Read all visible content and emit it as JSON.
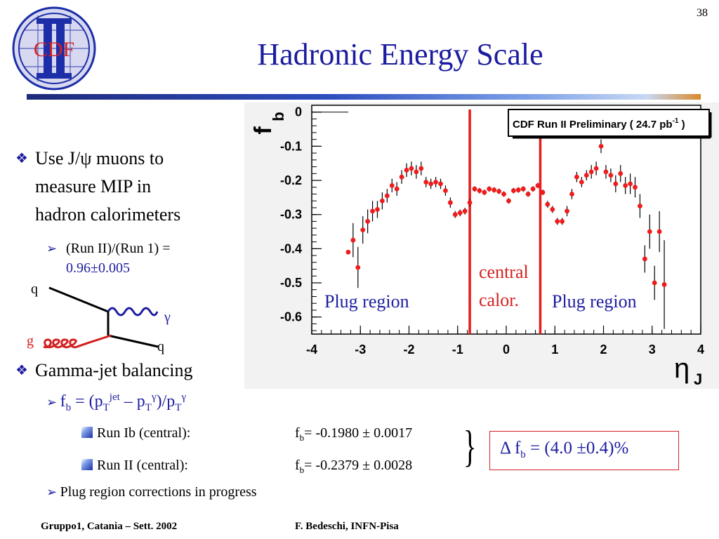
{
  "slide": {
    "number": "38",
    "title": "Hadronic Energy Scale",
    "logo_text": "CDF"
  },
  "bullets": {
    "b1": {
      "line1": "Use J/ψ muons to",
      "line2": "measure MIP in",
      "line3": "hadron calorimeters"
    },
    "b1_sub": {
      "prefix": "(Run II)/(Run 1) =",
      "value": "0.96±0.005"
    },
    "diagram": {
      "q_in": "q",
      "gamma": "γ",
      "g": "g",
      "q_out": "q"
    },
    "b2": "Gamma-jet balancing",
    "formula": {
      "f": "f",
      "b": "b",
      "eq": " = (p",
      "T1": "T",
      "jet": "jet",
      "minus": " – p",
      "T2": "T",
      "g1": "γ",
      "div": ")/p",
      "T3": "T",
      "g2": "γ"
    },
    "run_ib": {
      "label": "Run Ib (central):",
      "f": "f",
      "b": "b",
      "value": "= -0.1980 ± 0.0017"
    },
    "run_ii": {
      "label": "Run II  (central):",
      "f": "f",
      "b": "b",
      "value": "= -0.2379 ± 0.0028"
    },
    "delta": {
      "d": "Δ f",
      "b": "b",
      "value": " = (4.0 ±0.4)%"
    },
    "plug_note": "Plug region corrections in progress"
  },
  "footer": {
    "left": "Gruppo1, Catania – Sett. 2002",
    "right": "F. Bedeschi, INFN-Pisa"
  },
  "chart_data": {
    "type": "scatter",
    "title": "CDF Run II Preliminary ( 24.7 pb",
    "title_sup": "-1",
    "title_end": " )",
    "ylabel": "f",
    "ylabel_sub": "b",
    "xlabel": "η",
    "xlabel_sub": "J",
    "xlim": [
      -4,
      4
    ],
    "ylim": [
      -0.65,
      0.02
    ],
    "xticks": [
      "-4",
      "-3",
      "-2",
      "-1",
      "0",
      "1",
      "2",
      "3",
      "4"
    ],
    "yticks": [
      "0",
      "-0.1",
      "-0.2",
      "-0.3",
      "-0.4",
      "-0.5",
      "-0.6"
    ],
    "series_color": "#ee1c1c",
    "vlines": [
      -0.75,
      0.7
    ],
    "annotations": {
      "plug_left": "Plug region",
      "central_1": "central",
      "central_2": "calor.",
      "plug_right": "Plug region"
    },
    "points": [
      {
        "x": -3.25,
        "y": -0.41,
        "err": 0.0
      },
      {
        "x": -3.15,
        "y": -0.375,
        "err": 0.05
      },
      {
        "x": -3.05,
        "y": -0.455,
        "err": 0.06
      },
      {
        "x": -2.95,
        "y": -0.345,
        "err": 0.04
      },
      {
        "x": -2.85,
        "y": -0.32,
        "err": 0.035
      },
      {
        "x": -2.75,
        "y": -0.29,
        "err": 0.03
      },
      {
        "x": -2.65,
        "y": -0.285,
        "err": 0.025
      },
      {
        "x": -2.55,
        "y": -0.26,
        "err": 0.025
      },
      {
        "x": -2.45,
        "y": -0.245,
        "err": 0.02
      },
      {
        "x": -2.35,
        "y": -0.215,
        "err": 0.02
      },
      {
        "x": -2.25,
        "y": -0.225,
        "err": 0.02
      },
      {
        "x": -2.15,
        "y": -0.19,
        "err": 0.02
      },
      {
        "x": -2.05,
        "y": -0.17,
        "err": 0.02
      },
      {
        "x": -1.95,
        "y": -0.165,
        "err": 0.02
      },
      {
        "x": -1.85,
        "y": -0.175,
        "err": 0.02
      },
      {
        "x": -1.75,
        "y": -0.165,
        "err": 0.02
      },
      {
        "x": -1.65,
        "y": -0.205,
        "err": 0.015
      },
      {
        "x": -1.55,
        "y": -0.21,
        "err": 0.015
      },
      {
        "x": -1.45,
        "y": -0.205,
        "err": 0.015
      },
      {
        "x": -1.35,
        "y": -0.21,
        "err": 0.015
      },
      {
        "x": -1.25,
        "y": -0.23,
        "err": 0.015
      },
      {
        "x": -1.15,
        "y": -0.265,
        "err": 0.015
      },
      {
        "x": -1.05,
        "y": -0.3,
        "err": 0.01
      },
      {
        "x": -0.95,
        "y": -0.295,
        "err": 0.01
      },
      {
        "x": -0.85,
        "y": -0.29,
        "err": 0.01
      },
      {
        "x": -0.75,
        "y": -0.265,
        "err": 0.01
      },
      {
        "x": -0.65,
        "y": -0.225,
        "err": 0.008
      },
      {
        "x": -0.55,
        "y": -0.23,
        "err": 0.008
      },
      {
        "x": -0.45,
        "y": -0.235,
        "err": 0.008
      },
      {
        "x": -0.35,
        "y": -0.225,
        "err": 0.008
      },
      {
        "x": -0.25,
        "y": -0.228,
        "err": 0.008
      },
      {
        "x": -0.15,
        "y": -0.232,
        "err": 0.008
      },
      {
        "x": -0.05,
        "y": -0.24,
        "err": 0.008
      },
      {
        "x": 0.05,
        "y": -0.26,
        "err": 0.008
      },
      {
        "x": 0.15,
        "y": -0.23,
        "err": 0.008
      },
      {
        "x": 0.25,
        "y": -0.228,
        "err": 0.008
      },
      {
        "x": 0.35,
        "y": -0.225,
        "err": 0.008
      },
      {
        "x": 0.45,
        "y": -0.24,
        "err": 0.008
      },
      {
        "x": 0.55,
        "y": -0.225,
        "err": 0.008
      },
      {
        "x": 0.65,
        "y": -0.215,
        "err": 0.008
      },
      {
        "x": 0.75,
        "y": -0.235,
        "err": 0.008
      },
      {
        "x": 0.85,
        "y": -0.27,
        "err": 0.01
      },
      {
        "x": 0.95,
        "y": -0.285,
        "err": 0.01
      },
      {
        "x": 1.05,
        "y": -0.32,
        "err": 0.01
      },
      {
        "x": 1.15,
        "y": -0.32,
        "err": 0.01
      },
      {
        "x": 1.25,
        "y": -0.29,
        "err": 0.015
      },
      {
        "x": 1.35,
        "y": -0.24,
        "err": 0.015
      },
      {
        "x": 1.45,
        "y": -0.19,
        "err": 0.015
      },
      {
        "x": 1.55,
        "y": -0.205,
        "err": 0.015
      },
      {
        "x": 1.65,
        "y": -0.185,
        "err": 0.015
      },
      {
        "x": 1.75,
        "y": -0.175,
        "err": 0.02
      },
      {
        "x": 1.85,
        "y": -0.165,
        "err": 0.02
      },
      {
        "x": 1.95,
        "y": -0.1,
        "err": 0.02
      },
      {
        "x": 2.05,
        "y": -0.175,
        "err": 0.02
      },
      {
        "x": 2.15,
        "y": -0.185,
        "err": 0.02
      },
      {
        "x": 2.25,
        "y": -0.21,
        "err": 0.025
      },
      {
        "x": 2.35,
        "y": -0.18,
        "err": 0.025
      },
      {
        "x": 2.45,
        "y": -0.215,
        "err": 0.025
      },
      {
        "x": 2.55,
        "y": -0.21,
        "err": 0.03
      },
      {
        "x": 2.65,
        "y": -0.22,
        "err": 0.03
      },
      {
        "x": 2.75,
        "y": -0.275,
        "err": 0.035
      },
      {
        "x": 2.85,
        "y": -0.43,
        "err": 0.04
      },
      {
        "x": 2.95,
        "y": -0.35,
        "err": 0.05
      },
      {
        "x": 3.05,
        "y": -0.5,
        "err": 0.05
      },
      {
        "x": 3.15,
        "y": -0.35,
        "err": 0.06
      },
      {
        "x": 3.25,
        "y": -0.505,
        "err": 0.13
      }
    ]
  }
}
